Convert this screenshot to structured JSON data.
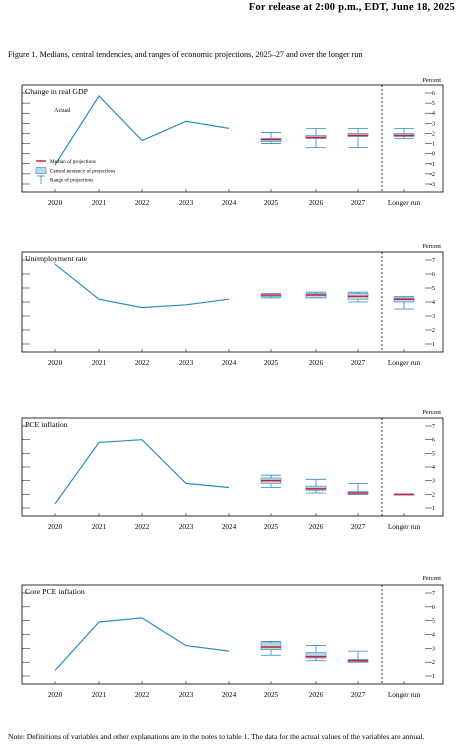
{
  "header": {
    "release": "For release at 2:00 p.m., EDT, June 18, 2025"
  },
  "figure_title": "Figure 1. Medians, central tendencies, and ranges of economic projections, 2025–27 and over the longer run",
  "note": "Note: Definitions of variables and other explanations are in the notes to table 1. The data for the actual values of the variables are annual.",
  "legend": {
    "actual": "Actual",
    "median": "Median of projections",
    "central": "Central tendency of projections",
    "range": "Range of projections"
  },
  "colors": {
    "actual_line": "#2e8bc0",
    "median": "#cc1f2b",
    "central_fill": "#bcd7ec",
    "central_edge": "#2e8bc0",
    "range": "#2e8bc0"
  },
  "chart_data": [
    {
      "type": "line",
      "title": "Change in real GDP",
      "unit_label": "Percent",
      "categories": [
        "2020",
        "2021",
        "2022",
        "2023",
        "2024",
        "2025",
        "2026",
        "2027",
        "Longer run"
      ],
      "ylim": [
        -3,
        6
      ],
      "yticks": [
        -3,
        -2,
        -1,
        0,
        1,
        2,
        3,
        4,
        5,
        6
      ],
      "actual": [
        -1.1,
        5.7,
        1.3,
        3.2,
        2.5
      ],
      "projections": [
        {
          "category": "2025",
          "median": 1.4,
          "central": [
            1.2,
            1.5
          ],
          "range": [
            1.0,
            2.1
          ]
        },
        {
          "category": "2026",
          "median": 1.6,
          "central": [
            1.5,
            1.8
          ],
          "range": [
            0.6,
            2.5
          ]
        },
        {
          "category": "2027",
          "median": 1.8,
          "central": [
            1.7,
            2.0
          ],
          "range": [
            0.6,
            2.5
          ]
        },
        {
          "category": "Longer run",
          "median": 1.8,
          "central": [
            1.7,
            2.0
          ],
          "range": [
            1.5,
            2.5
          ]
        }
      ]
    },
    {
      "type": "line",
      "title": "Unemployment rate",
      "unit_label": "Percent",
      "categories": [
        "2020",
        "2021",
        "2022",
        "2023",
        "2024",
        "2025",
        "2026",
        "2027",
        "Longer run"
      ],
      "ylim": [
        1,
        7
      ],
      "yticks": [
        1,
        2,
        3,
        4,
        5,
        6,
        7
      ],
      "actual": [
        6.7,
        4.2,
        3.6,
        3.8,
        4.2
      ],
      "projections": [
        {
          "category": "2025",
          "median": 4.5,
          "central": [
            4.4,
            4.5
          ],
          "range": [
            4.3,
            4.6
          ]
        },
        {
          "category": "2026",
          "median": 4.5,
          "central": [
            4.3,
            4.6
          ],
          "range": [
            4.3,
            4.7
          ]
        },
        {
          "category": "2027",
          "median": 4.4,
          "central": [
            4.2,
            4.6
          ],
          "range": [
            4.0,
            4.7
          ]
        },
        {
          "category": "Longer run",
          "median": 4.2,
          "central": [
            4.0,
            4.3
          ],
          "range": [
            3.5,
            4.4
          ]
        }
      ]
    },
    {
      "type": "line",
      "title": "PCE inflation",
      "unit_label": "Percent",
      "categories": [
        "2020",
        "2021",
        "2022",
        "2023",
        "2024",
        "2025",
        "2026",
        "2027",
        "Longer run"
      ],
      "ylim": [
        1,
        7
      ],
      "yticks": [
        1,
        2,
        3,
        4,
        5,
        6,
        7
      ],
      "actual": [
        1.3,
        5.8,
        6.0,
        2.8,
        2.5
      ],
      "projections": [
        {
          "category": "2025",
          "median": 3.0,
          "central": [
            2.8,
            3.2
          ],
          "range": [
            2.5,
            3.4
          ]
        },
        {
          "category": "2026",
          "median": 2.4,
          "central": [
            2.3,
            2.6
          ],
          "range": [
            2.1,
            3.1
          ]
        },
        {
          "category": "2027",
          "median": 2.1,
          "central": [
            2.0,
            2.2
          ],
          "range": [
            2.0,
            2.8
          ]
        },
        {
          "category": "Longer run",
          "median": 2.0,
          "central": [
            2.0,
            2.0
          ],
          "range": [
            2.0,
            2.0
          ]
        }
      ]
    },
    {
      "type": "line",
      "title": "Core PCE inflation",
      "unit_label": "Percent",
      "categories": [
        "2020",
        "2021",
        "2022",
        "2023",
        "2024",
        "2025",
        "2026",
        "2027",
        "Longer run"
      ],
      "ylim": [
        1,
        7
      ],
      "yticks": [
        1,
        2,
        3,
        4,
        5,
        6,
        7
      ],
      "actual": [
        1.4,
        4.9,
        5.2,
        3.2,
        2.8
      ],
      "projections": [
        {
          "category": "2025",
          "median": 3.1,
          "central": [
            2.9,
            3.4
          ],
          "range": [
            2.5,
            3.5
          ]
        },
        {
          "category": "2026",
          "median": 2.4,
          "central": [
            2.3,
            2.7
          ],
          "range": [
            2.1,
            3.2
          ]
        },
        {
          "category": "2027",
          "median": 2.1,
          "central": [
            2.0,
            2.2
          ],
          "range": [
            2.0,
            2.8
          ]
        }
      ]
    }
  ]
}
